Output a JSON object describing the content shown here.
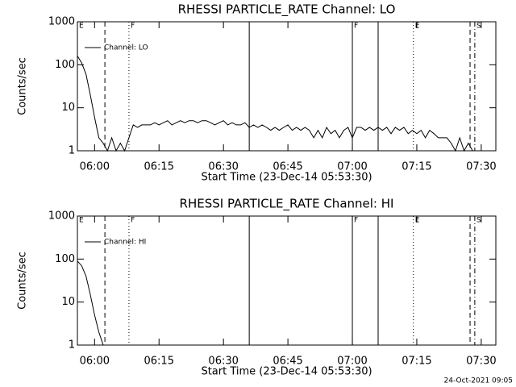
{
  "chart_data": [
    {
      "type": "line",
      "title": "RHESSI PARTICLE_RATE Channel: LO",
      "xlabel": "Start Time (23-Dec-14 05:53:30)",
      "ylabel": "Counts/sec",
      "x": [
        356,
        357,
        358,
        359,
        360,
        361,
        362,
        363,
        364,
        365,
        366,
        367,
        368,
        369,
        370,
        371,
        372,
        373,
        374,
        375,
        376,
        377,
        378,
        379,
        380,
        381,
        382,
        383,
        384,
        385,
        386,
        387,
        388,
        389,
        390,
        391,
        392,
        393,
        394,
        395,
        396,
        397,
        398,
        399,
        400,
        401,
        402,
        403,
        404,
        405,
        406,
        407,
        408,
        409,
        410,
        411,
        412,
        413,
        414,
        415,
        416,
        417,
        418,
        419,
        420,
        421,
        422,
        423,
        424,
        425,
        426,
        427,
        428,
        429,
        430,
        431,
        432,
        433,
        434,
        435,
        436,
        437,
        438,
        439,
        440,
        441,
        442,
        443,
        444,
        445,
        446,
        447,
        448,
        449
      ],
      "series": [
        {
          "name": "Channel: LO",
          "color": "#000000",
          "values": [
            160,
            110,
            60,
            20,
            6,
            2,
            1.5,
            1,
            2,
            1,
            1.5,
            1,
            2,
            4,
            3.5,
            4,
            4,
            4,
            4.5,
            4,
            4.5,
            5,
            4,
            4.5,
            5,
            4.5,
            5,
            5,
            4.5,
            5,
            5,
            4.5,
            4,
            4.5,
            5,
            4,
            4.5,
            4,
            4,
            4.5,
            3.5,
            4,
            3.5,
            4,
            3.5,
            3,
            3.5,
            3,
            3.5,
            4,
            3,
            3.5,
            3,
            3.5,
            3,
            2,
            3,
            2,
            3.5,
            2.5,
            3,
            2,
            3,
            3.5,
            2,
            3.5,
            3.5,
            3,
            3.5,
            3,
            3.5,
            3,
            3.5,
            2.5,
            3.5,
            3,
            3.5,
            2.5,
            3,
            2.5,
            3,
            2,
            3,
            2.5,
            2,
            2,
            2,
            1.5,
            1,
            2,
            1,
            1.5,
            1,
            1
          ]
        }
      ],
      "xlim": [
        356,
        453.4
      ],
      "xticks": [
        {
          "value": 360,
          "label": "06:00"
        },
        {
          "value": 375,
          "label": "06:15"
        },
        {
          "value": 390,
          "label": "06:30"
        },
        {
          "value": 405,
          "label": "06:45"
        },
        {
          "value": 420,
          "label": "07:00"
        },
        {
          "value": 435,
          "label": "07:15"
        },
        {
          "value": 450,
          "label": "07:30"
        }
      ],
      "ylim": [
        1,
        1000
      ],
      "yticks": [
        1,
        10,
        100,
        1000
      ],
      "log_y": true,
      "legend": "top-left",
      "markers": [
        {
          "x": 356,
          "style": "solid",
          "label": "E"
        },
        {
          "x": 362.4,
          "style": "dashed"
        },
        {
          "x": 368,
          "style": "dotted",
          "label": "F"
        },
        {
          "x": 396,
          "style": "solid"
        },
        {
          "x": 420,
          "style": "solid",
          "label": "F"
        },
        {
          "x": 426,
          "style": "solid"
        },
        {
          "x": 434.2,
          "style": "dotted",
          "label": "E"
        },
        {
          "x": 447.4,
          "style": "dashed"
        },
        {
          "x": 448.5,
          "style": "dashdot",
          "label": "S"
        }
      ]
    },
    {
      "type": "line",
      "title": "RHESSI PARTICLE_RATE Channel: HI",
      "xlabel": "Start Time (23-Dec-14 05:53:30)",
      "ylabel": "Counts/sec",
      "x": [
        356,
        357,
        358,
        359,
        360,
        361,
        362
      ],
      "series": [
        {
          "name": "Channel: HI",
          "color": "#000000",
          "values": [
            90,
            70,
            40,
            15,
            5,
            2,
            1
          ]
        }
      ],
      "xlim": [
        356,
        453.4
      ],
      "xticks": [
        {
          "value": 360,
          "label": "06:00"
        },
        {
          "value": 375,
          "label": "06:15"
        },
        {
          "value": 390,
          "label": "06:30"
        },
        {
          "value": 405,
          "label": "06:45"
        },
        {
          "value": 420,
          "label": "07:00"
        },
        {
          "value": 435,
          "label": "07:15"
        },
        {
          "value": 450,
          "label": "07:30"
        }
      ],
      "ylim": [
        1,
        1000
      ],
      "yticks": [
        1,
        10,
        100,
        1000
      ],
      "log_y": true,
      "legend": "top-left",
      "markers": [
        {
          "x": 356,
          "style": "solid",
          "label": "E"
        },
        {
          "x": 362.4,
          "style": "dashed"
        },
        {
          "x": 368,
          "style": "dotted",
          "label": "F"
        },
        {
          "x": 396,
          "style": "solid"
        },
        {
          "x": 420,
          "style": "solid",
          "label": "F"
        },
        {
          "x": 426,
          "style": "solid"
        },
        {
          "x": 434.2,
          "style": "dotted",
          "label": "E"
        },
        {
          "x": 447.4,
          "style": "dashed"
        },
        {
          "x": 448.5,
          "style": "dashdot",
          "label": "S"
        }
      ]
    }
  ],
  "footer": "24-Oct-2021 09:05"
}
